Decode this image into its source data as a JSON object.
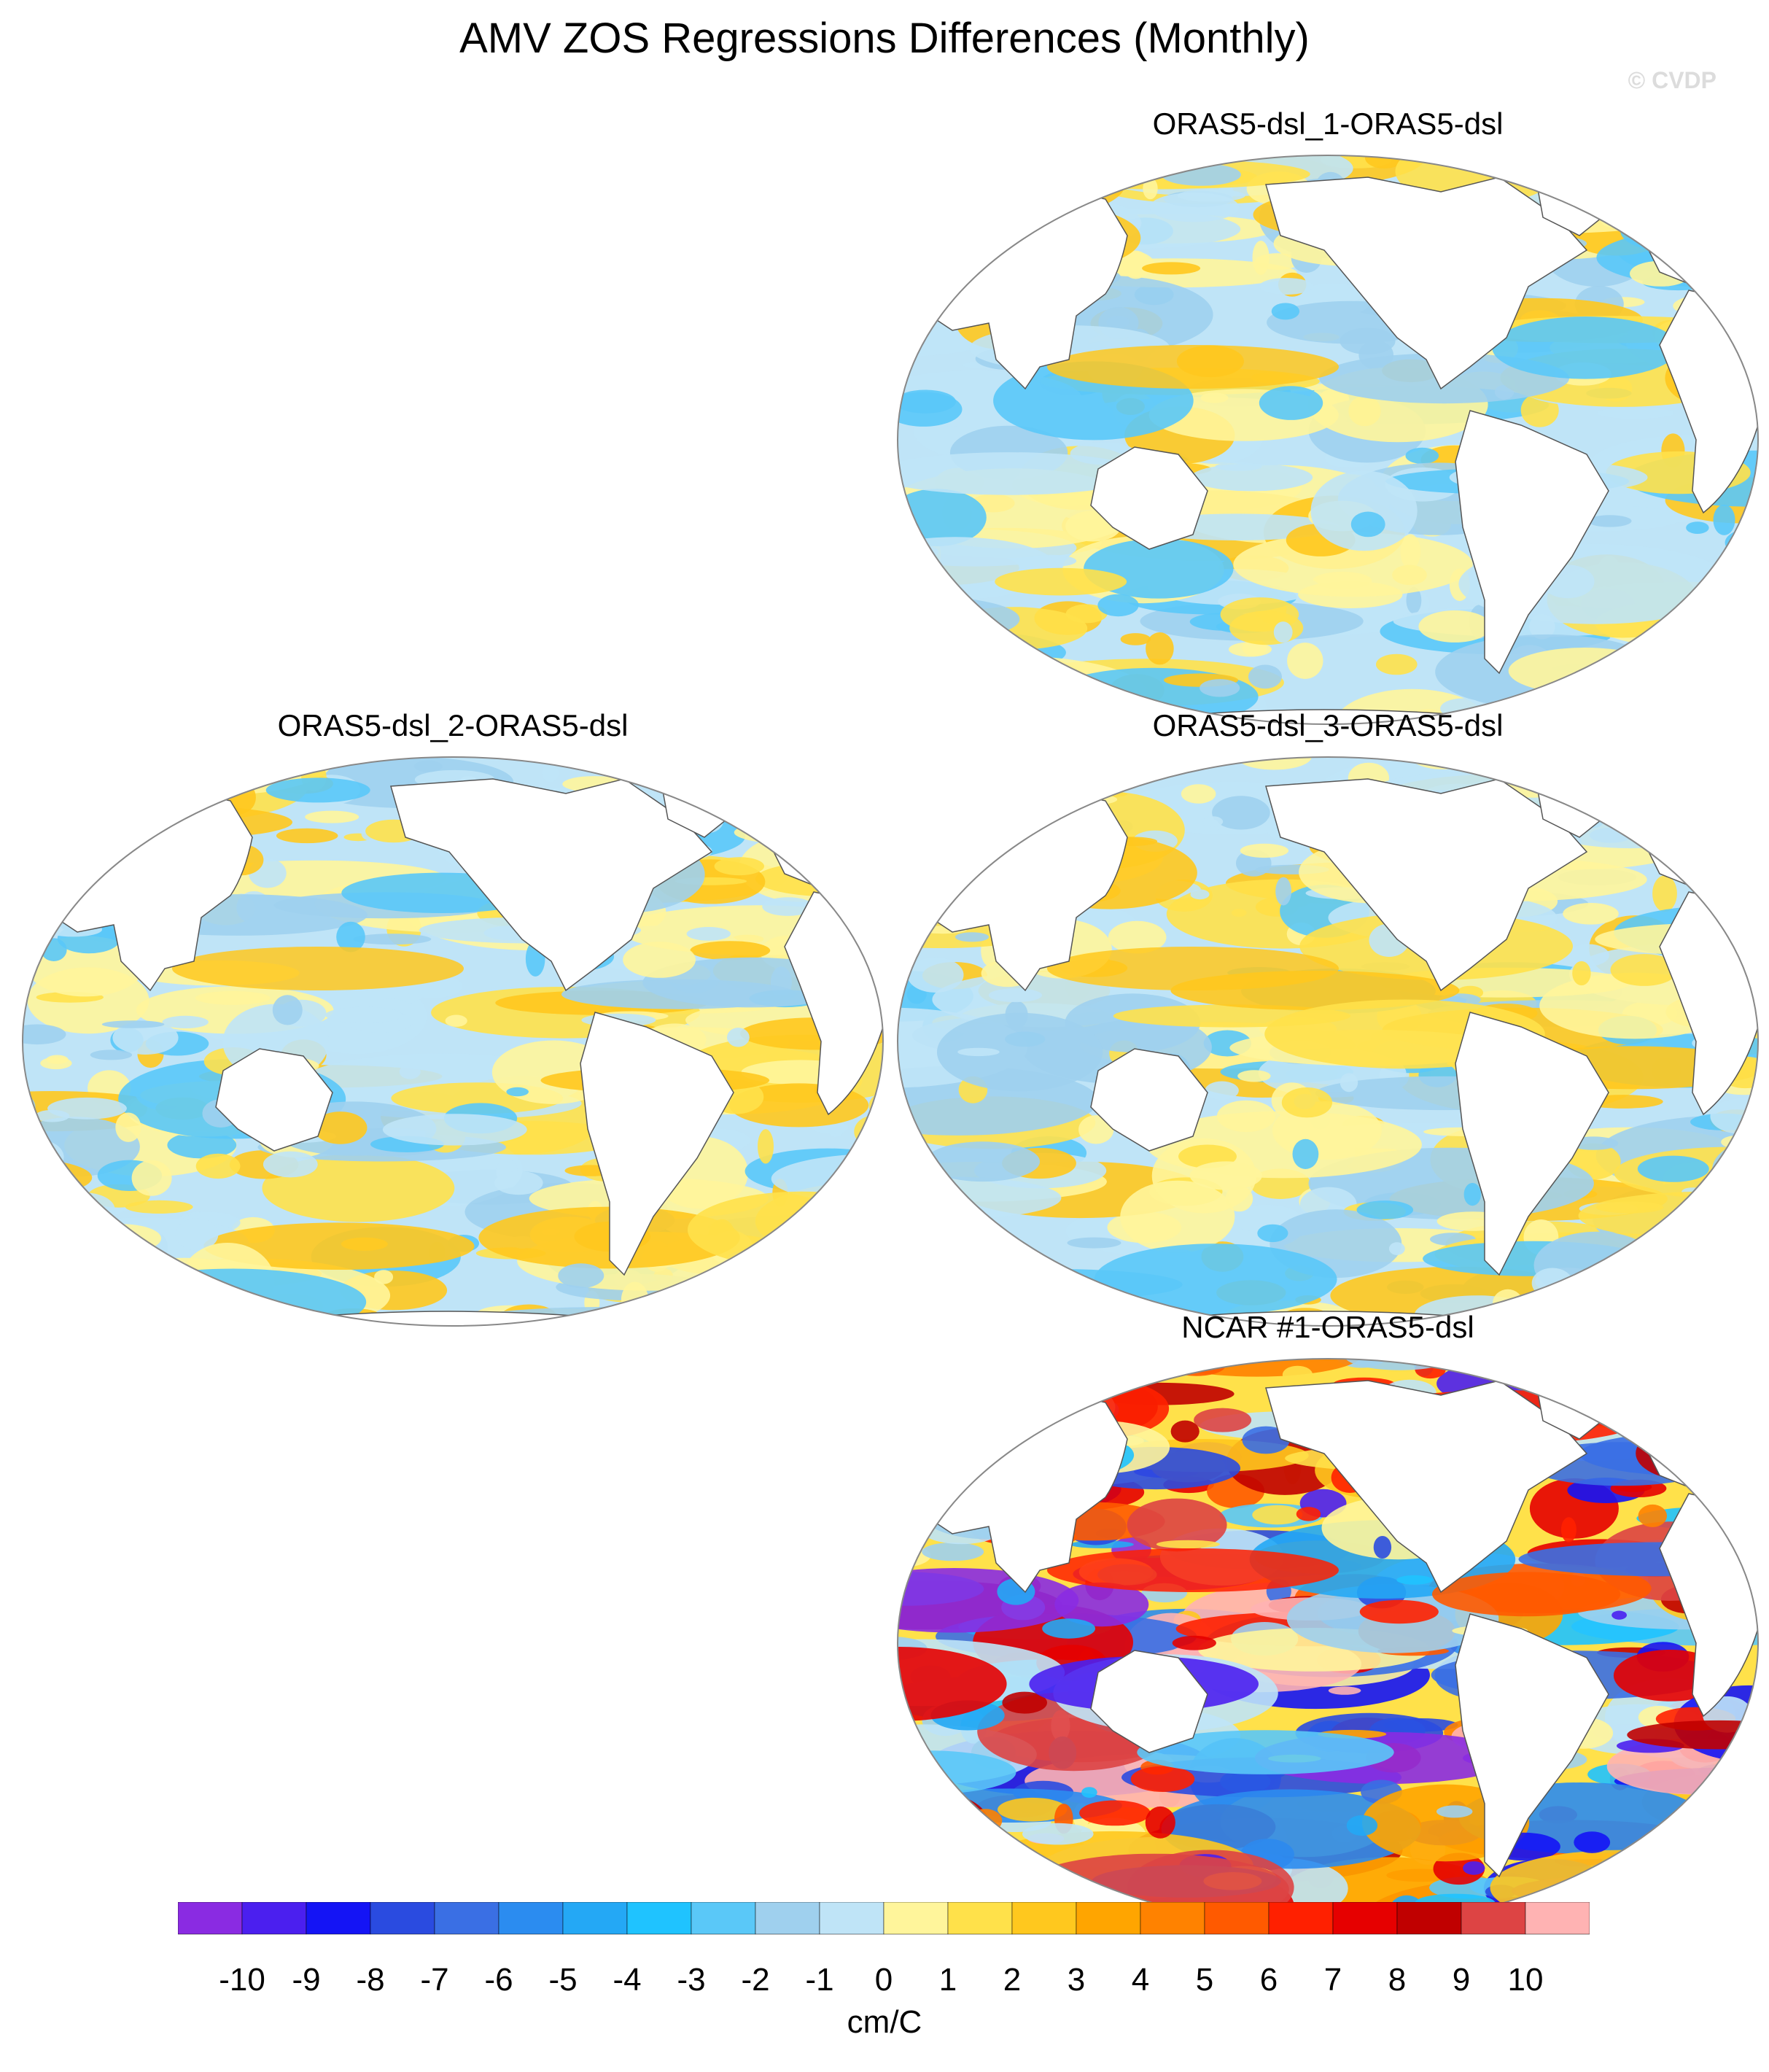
{
  "title": "AMV ZOS Regressions Differences (Monthly)",
  "credit": "© CVDP",
  "panels": [
    {
      "id": "p1",
      "title": "ORAS5-dsl_1-ORAS5-dsl",
      "intensity": "weak"
    },
    {
      "id": "p2",
      "title": "ORAS5-dsl_2-ORAS5-dsl",
      "intensity": "weak"
    },
    {
      "id": "p3",
      "title": "ORAS5-dsl_3-ORAS5-dsl",
      "intensity": "weak"
    },
    {
      "id": "p4",
      "title": "NCAR #1-ORAS5-dsl",
      "intensity": "strong"
    }
  ],
  "colorbar": {
    "units": "cm/C",
    "labels": [
      "-10",
      "-9",
      "-8",
      "-7",
      "-6",
      "-5",
      "-4",
      "-3",
      "-2",
      "-1",
      "0",
      "1",
      "2",
      "3",
      "4",
      "5",
      "6",
      "7",
      "8",
      "9",
      "10"
    ],
    "colors": [
      "#8a2be2",
      "#4b1fef",
      "#1414f5",
      "#2a4be0",
      "#3a6fe4",
      "#2b8cf0",
      "#24a8f5",
      "#1fc3ff",
      "#5ac8f8",
      "#9fd0ee",
      "#bfe4f7",
      "#fff59b",
      "#ffe14a",
      "#ffc81e",
      "#ffa500",
      "#ff8200",
      "#ff5a00",
      "#ff2000",
      "#e60000",
      "#c00000",
      "#dd4444",
      "#ffb3b3"
    ]
  },
  "projection": "Robinson-like, centered on Pacific"
}
